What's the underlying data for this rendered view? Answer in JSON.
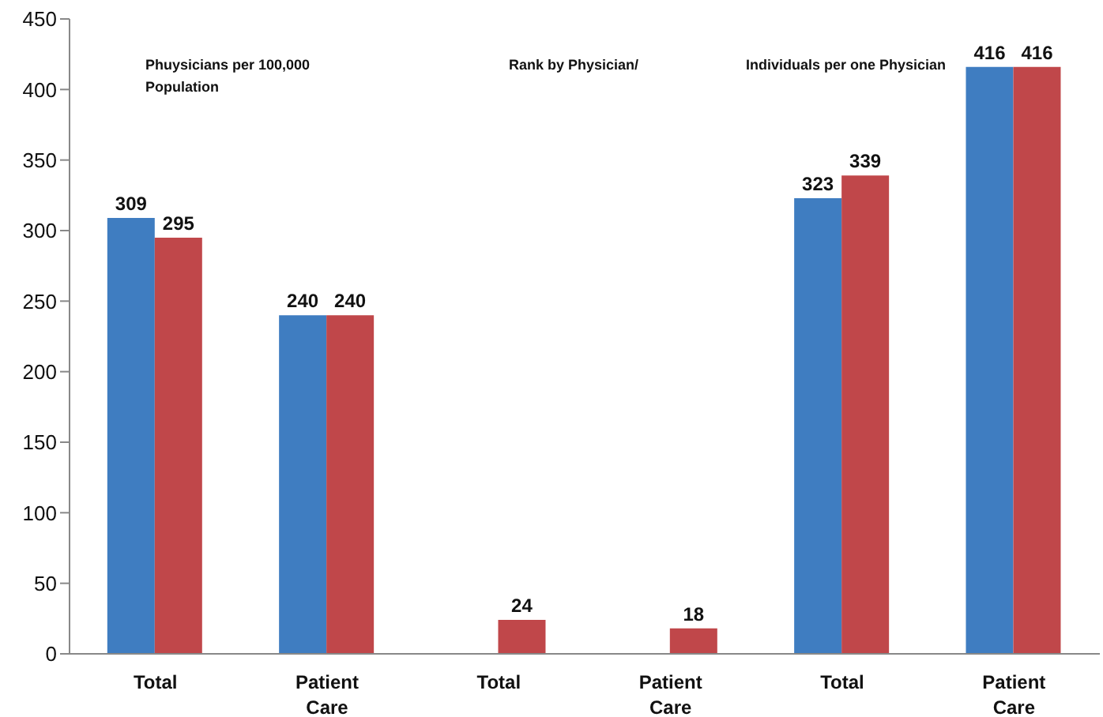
{
  "chart_data": {
    "type": "bar",
    "categories": [
      "Total",
      "Patient Care",
      "Total",
      "Patient Care",
      "Total",
      "Patient Care"
    ],
    "series": [
      {
        "color": "#3f7dc1",
        "values": [
          309,
          240,
          null,
          null,
          323,
          416
        ]
      },
      {
        "color": "#c0474a",
        "values": [
          295,
          240,
          24,
          18,
          339,
          416
        ]
      }
    ],
    "ylim": [
      0,
      450
    ],
    "yticks": [
      0,
      50,
      100,
      150,
      200,
      250,
      300,
      350,
      400,
      450
    ],
    "grid": false,
    "legend": false,
    "data_labels": true,
    "annotations": [
      "Phuysicians per 100,000 Population",
      "Rank by Physician/",
      "Individuals per one Physician"
    ]
  }
}
